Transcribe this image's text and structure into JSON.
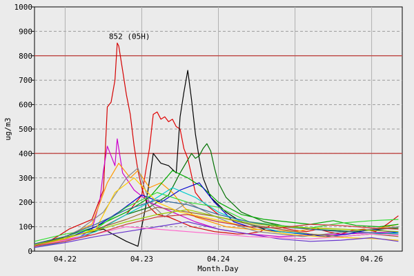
{
  "chart_data": {
    "type": "line",
    "xlabel": "Month.Day",
    "ylabel": "ug/m3",
    "ylim": [
      0,
      1000
    ],
    "xlim": [
      4.216,
      4.264
    ],
    "y_ticks": [
      0,
      100,
      200,
      300,
      400,
      500,
      600,
      700,
      800,
      900,
      1000
    ],
    "x_ticks": [
      {
        "value": 4.22,
        "label": "04.22"
      },
      {
        "value": 4.23,
        "label": "04.23"
      },
      {
        "value": 4.24,
        "label": "04.24"
      },
      {
        "value": 4.25,
        "label": "04.25"
      },
      {
        "value": 4.26,
        "label": "04.26"
      }
    ],
    "grid": true,
    "thresholds": [
      {
        "value": 400,
        "color": "#c0504d"
      },
      {
        "value": 800,
        "color": "#c0504d"
      }
    ],
    "annotations": [
      {
        "x": 4.2268,
        "y": 852,
        "text": "852 (05H)"
      }
    ],
    "series": [
      {
        "color": "#d40000",
        "x": [
          4.216,
          4.2175,
          4.219,
          4.2205,
          4.222,
          4.2235,
          4.225,
          4.2255,
          4.226,
          4.2265,
          4.2268,
          4.227,
          4.2275,
          4.228,
          4.2285,
          4.229,
          4.2295,
          4.23,
          4.2305,
          4.231,
          4.232,
          4.2335,
          4.235,
          4.2365,
          4.238,
          4.2395,
          4.241,
          4.2425,
          4.244,
          4.2455,
          4.247,
          4.2485,
          4.25,
          4.2515,
          4.253,
          4.2545,
          4.256,
          4.2575,
          4.259,
          4.2605,
          4.262,
          4.2635
        ],
        "y": [
          20,
          35,
          60,
          90,
          110,
          130,
          250,
          590,
          610,
          700,
          852,
          840,
          740,
          640,
          560,
          430,
          330,
          260,
          210,
          180,
          150,
          140,
          120,
          100,
          90,
          80,
          75,
          70,
          72,
          80,
          110,
          95,
          85,
          80,
          90,
          78,
          70,
          85,
          90,
          80,
          110,
          145
        ]
      },
      {
        "color": "#e00000",
        "x": [
          4.2225,
          4.225,
          4.228,
          4.23,
          4.231,
          4.2315,
          4.232,
          4.2325,
          4.233,
          4.2335,
          4.234,
          4.2345,
          4.235,
          4.2355,
          4.236,
          4.2365,
          4.237,
          4.238,
          4.24
        ],
        "y": [
          60,
          100,
          150,
          230,
          420,
          560,
          570,
          540,
          550,
          530,
          540,
          510,
          500,
          420,
          380,
          310,
          240,
          200,
          150
        ]
      },
      {
        "color": "#000000",
        "x": [
          4.216,
          4.219,
          4.222,
          4.225,
          4.228,
          4.2295,
          4.2305,
          4.2315,
          4.2325,
          4.2335,
          4.2345,
          4.235,
          4.2355,
          4.236,
          4.2365,
          4.237,
          4.2375,
          4.238,
          4.239,
          4.241,
          4.243,
          4.246
        ],
        "y": [
          30,
          50,
          70,
          90,
          40,
          20,
          180,
          400,
          360,
          350,
          320,
          550,
          650,
          740,
          620,
          480,
          380,
          300,
          220,
          160,
          120,
          90
        ]
      },
      {
        "color": "#007000",
        "x": [
          4.228,
          4.231,
          4.2335,
          4.235,
          4.2365,
          4.237,
          4.2375,
          4.238,
          4.2385,
          4.239,
          4.2395,
          4.24,
          4.241,
          4.243,
          4.246,
          4.249,
          4.252,
          4.255,
          4.258,
          4.261,
          4.2635
        ],
        "y": [
          150,
          180,
          230,
          320,
          400,
          380,
          390,
          420,
          440,
          410,
          340,
          280,
          220,
          160,
          120,
          100,
          90,
          85,
          80,
          90,
          95
        ]
      },
      {
        "color": "#cc00cc",
        "x": [
          4.216,
          4.219,
          4.222,
          4.2235,
          4.2245,
          4.225,
          4.2255,
          4.2265,
          4.2268,
          4.2275,
          4.229,
          4.231,
          4.234,
          4.237,
          4.24,
          4.244,
          4.248,
          4.252,
          4.256,
          4.26,
          4.2635
        ],
        "y": [
          20,
          40,
          60,
          90,
          200,
          330,
          430,
          350,
          460,
          320,
          250,
          200,
          160,
          120,
          90,
          70,
          60,
          65,
          70,
          75,
          80
        ]
      },
      {
        "color": "#ff9900",
        "x": [
          4.216,
          4.22,
          4.2235,
          4.2255,
          4.227,
          4.2285,
          4.2295,
          4.231,
          4.2325,
          4.234,
          4.2355,
          4.237,
          4.239,
          4.241,
          4.244,
          4.247,
          4.25,
          4.253,
          4.256,
          4.259,
          4.262,
          4.2635
        ],
        "y": [
          30,
          60,
          110,
          280,
          360,
          300,
          330,
          260,
          280,
          240,
          180,
          140,
          120,
          100,
          90,
          85,
          80,
          95,
          90,
          85,
          100,
          110
        ]
      },
      {
        "color": "#00aa00",
        "x": [
          4.216,
          4.22,
          4.224,
          4.228,
          4.231,
          4.234,
          4.236,
          4.238,
          4.24,
          4.243,
          4.246,
          4.249,
          4.252,
          4.255,
          4.258,
          4.261,
          4.2635
        ],
        "y": [
          30,
          60,
          100,
          160,
          220,
          330,
          300,
          260,
          200,
          150,
          130,
          120,
          110,
          125,
          105,
          100,
          110
        ]
      },
      {
        "color": "#0000cc",
        "x": [
          4.216,
          4.22,
          4.224,
          4.227,
          4.23,
          4.2325,
          4.235,
          4.2375,
          4.2395,
          4.242,
          4.245,
          4.248,
          4.251,
          4.254,
          4.257,
          4.26,
          4.2635
        ],
        "y": [
          25,
          50,
          100,
          160,
          230,
          200,
          250,
          280,
          200,
          120,
          90,
          80,
          70,
          60,
          70,
          90,
          75
        ]
      },
      {
        "color": "#33dd33",
        "x": [
          4.216,
          4.22,
          4.224,
          4.228,
          4.232,
          4.236,
          4.24,
          4.244,
          4.248,
          4.252,
          4.256,
          4.26,
          4.2635
        ],
        "y": [
          40,
          70,
          90,
          180,
          240,
          200,
          180,
          120,
          105,
          95,
          115,
          125,
          130
        ]
      },
      {
        "color": "#888888",
        "x": [
          4.216,
          4.219,
          4.222,
          4.225,
          4.228,
          4.2295,
          4.231,
          4.233,
          4.236,
          4.239,
          4.242,
          4.245,
          4.248,
          4.251,
          4.254,
          4.257,
          4.26,
          4.2635
        ],
        "y": [
          20,
          40,
          90,
          160,
          300,
          340,
          200,
          140,
          200,
          150,
          110,
          80,
          70,
          60,
          70,
          80,
          90,
          100
        ]
      },
      {
        "color": "#00cccc",
        "x": [
          4.216,
          4.22,
          4.224,
          4.228,
          4.231,
          4.234,
          4.237,
          4.24,
          4.244,
          4.248,
          4.252,
          4.256,
          4.26,
          4.2635
        ],
        "y": [
          15,
          40,
          80,
          150,
          200,
          260,
          220,
          160,
          110,
          80,
          70,
          60,
          70,
          75
        ]
      },
      {
        "color": "#996633",
        "x": [
          4.216,
          4.22,
          4.224,
          4.228,
          4.232,
          4.236,
          4.24,
          4.244,
          4.248,
          4.252,
          4.256,
          4.26,
          4.2635
        ],
        "y": [
          25,
          50,
          90,
          130,
          180,
          160,
          140,
          110,
          90,
          70,
          60,
          70,
          60
        ]
      },
      {
        "color": "#ffcc00",
        "x": [
          4.216,
          4.22,
          4.224,
          4.2265,
          4.229,
          4.232,
          4.235,
          4.238,
          4.241,
          4.245,
          4.249,
          4.253,
          4.257,
          4.261,
          4.2635
        ],
        "y": [
          20,
          50,
          90,
          240,
          300,
          200,
          160,
          140,
          120,
          90,
          70,
          60,
          55,
          50,
          45
        ]
      },
      {
        "color": "#6633cc",
        "x": [
          4.216,
          4.22,
          4.224,
          4.228,
          4.232,
          4.236,
          4.24,
          4.244,
          4.248,
          4.252,
          4.256,
          4.26,
          4.2635
        ],
        "y": [
          15,
          35,
          60,
          80,
          100,
          120,
          90,
          70,
          50,
          40,
          45,
          55,
          40
        ]
      },
      {
        "color": "#ff66cc",
        "x": [
          4.216,
          4.22,
          4.224,
          4.228,
          4.232,
          4.236,
          4.24,
          4.244,
          4.248,
          4.252,
          4.256,
          4.26,
          4.2635
        ],
        "y": [
          20,
          45,
          70,
          100,
          90,
          80,
          70,
          60,
          55,
          50,
          60,
          70,
          65
        ]
      },
      {
        "color": "#336699",
        "x": [
          4.216,
          4.22,
          4.224,
          4.228,
          4.232,
          4.236,
          4.24,
          4.244,
          4.248,
          4.252,
          4.256,
          4.26,
          4.2635
        ],
        "y": [
          30,
          60,
          110,
          170,
          210,
          190,
          150,
          120,
          100,
          90,
          80,
          75,
          70
        ]
      },
      {
        "color": "#99cc00",
        "x": [
          4.216,
          4.22,
          4.224,
          4.228,
          4.232,
          4.236,
          4.24,
          4.244,
          4.248,
          4.252,
          4.256,
          4.26,
          4.2635
        ],
        "y": [
          25,
          55,
          85,
          120,
          150,
          170,
          140,
          115,
          100,
          95,
          90,
          85,
          80
        ]
      },
      {
        "color": "#cc3333",
        "x": [
          4.216,
          4.22,
          4.224,
          4.228,
          4.232,
          4.236,
          4.24,
          4.244,
          4.248,
          4.252,
          4.256,
          4.26,
          4.2635
        ],
        "y": [
          20,
          40,
          70,
          110,
          140,
          150,
          120,
          100,
          95,
          110,
          105,
          95,
          90
        ]
      }
    ]
  }
}
